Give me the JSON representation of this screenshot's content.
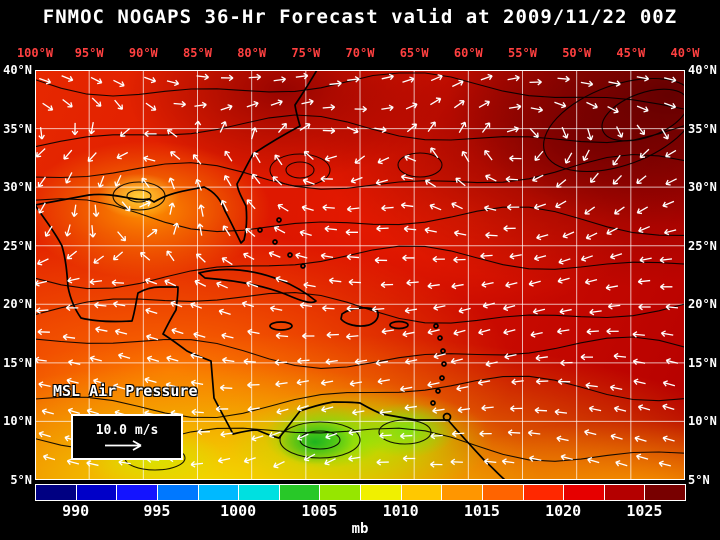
{
  "title": "FNMOC NOGAPS 36-Hr Forecast valid at 2009/11/22 00Z",
  "axes": {
    "lon_labels": [
      "100°W",
      "95°W",
      "90°W",
      "85°W",
      "80°W",
      "75°W",
      "70°W",
      "65°W",
      "60°W",
      "55°W",
      "50°W",
      "45°W",
      "40°W"
    ],
    "lat_labels_left": [
      "40°N",
      "35°N",
      "30°N",
      "25°N",
      "20°N",
      "15°N",
      "10°N",
      "5°N"
    ],
    "lat_labels_right": [
      "40°N",
      "35°N",
      "30°N",
      "25°N",
      "20°N",
      "15°N",
      "10°N",
      "5°N"
    ]
  },
  "map": {
    "overlay_label": "MSL Air Pressure",
    "wind_legend_speed": "10.0 m/s"
  },
  "colorbar": {
    "unit": "mb",
    "tick_labels": [
      "990",
      "995",
      "1000",
      "1005",
      "1010",
      "1015",
      "1020",
      "1025"
    ],
    "segment_colors": [
      "#000082",
      "#0000c8",
      "#1414ff",
      "#0078ff",
      "#00b9ff",
      "#00e0e0",
      "#28c828",
      "#96e600",
      "#f0f000",
      "#ffc800",
      "#ff9600",
      "#ff6400",
      "#ff2800",
      "#e60000",
      "#b40000",
      "#780000"
    ]
  },
  "chart_data": {
    "type": "heatmap",
    "title": "FNMOC NOGAPS 36-Hr Forecast valid at 2009/11/22 00Z",
    "model": "FNMOC NOGAPS",
    "forecast_hour_label": "36-Hr",
    "valid_time": "2009/11/22 00Z",
    "variable": "MSL Air Pressure",
    "units": "mb",
    "x_axis": {
      "ticks": [
        "100°W",
        "95°W",
        "90°W",
        "85°W",
        "80°W",
        "75°W",
        "70°W",
        "65°W",
        "60°W",
        "55°W",
        "50°W",
        "45°W",
        "40°W"
      ]
    },
    "y_axis": {
      "ticks": [
        "40°N",
        "35°N",
        "30°N",
        "25°N",
        "20°N",
        "15°N",
        "10°N",
        "5°N"
      ]
    },
    "colorbar": {
      "units": "mb",
      "ticks": [
        990,
        995,
        1000,
        1005,
        1010,
        1015,
        1020,
        1025
      ],
      "colors": [
        "#000082",
        "#0000c8",
        "#1414ff",
        "#0078ff",
        "#00b9ff",
        "#00e0e0",
        "#28c828",
        "#96e600",
        "#f0f000",
        "#ffc800",
        "#ff9600",
        "#ff6400",
        "#ff2800",
        "#e60000",
        "#b40000",
        "#780000"
      ]
    },
    "overlays": {
      "wind_vectors_reference": "10.0 m/s",
      "isobars": "black contour lines",
      "grid": "5-degree white lat/lon grid"
    },
    "field_summary": {
      "high_pressure_dark_red_region": "northeast quadrant (near 50W-40W, 30N-40N, ~1025 mb)",
      "low_pressure_green_region": "southern Caribbean near 75W-65W, 5N-10N (~1005 mb)",
      "gulf_of_mexico": "orange/yellow ~1010-1014 mb"
    }
  }
}
